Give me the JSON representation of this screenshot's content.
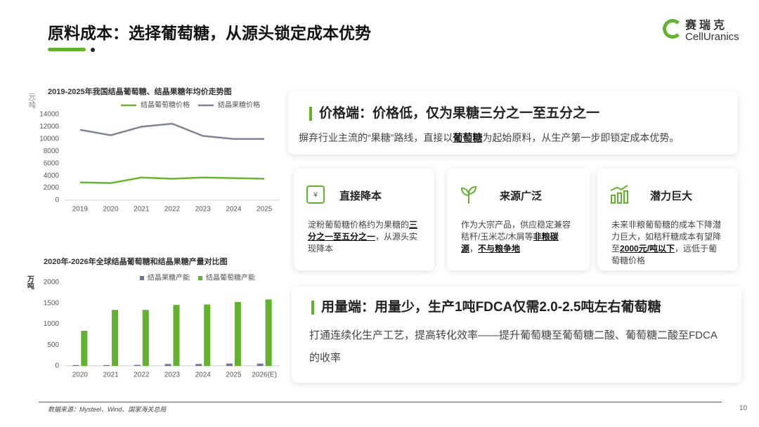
{
  "header": {
    "title": "原料成本：选择葡萄糖，从源头锁定成本优势",
    "logo_cn": "赛瑞克",
    "logo_en": "CellUranics"
  },
  "chart_data": [
    {
      "type": "line",
      "title": "2019-2025年我国结晶葡萄糖、结晶果糖年均价走势图",
      "y_label": "元/吨",
      "categories": [
        "2019",
        "2020",
        "2021",
        "2022",
        "2023",
        "2024",
        "2025"
      ],
      "series": [
        {
          "name": "结晶葡萄糖价格",
          "color": "#6ab42e",
          "values": [
            2900,
            2800,
            3700,
            3500,
            3700,
            3600,
            3500
          ]
        },
        {
          "name": "结晶果糖价格",
          "color": "#7f8393",
          "values": [
            11500,
            10600,
            12000,
            12500,
            10500,
            10000,
            10000
          ]
        }
      ],
      "ylim": [
        0,
        14000
      ],
      "yticks": [
        0,
        2000,
        4000,
        6000,
        8000,
        10000,
        12000,
        14000
      ],
      "grid": false
    },
    {
      "type": "bar",
      "title": "2020年-2026年全球结晶葡萄糖和结晶果糖产量对比图",
      "y_label": "万吨",
      "categories": [
        "2020",
        "2021",
        "2022",
        "2023",
        "2024",
        "2025",
        "2026(E)"
      ],
      "series": [
        {
          "name": "结晶果糖产能",
          "color": "#6d7390",
          "values": [
            20,
            20,
            25,
            45,
            45,
            55,
            55
          ]
        },
        {
          "name": "结晶葡萄糖产能",
          "color": "#62b22f",
          "values": [
            840,
            1340,
            1340,
            1460,
            1470,
            1530,
            1590
          ]
        }
      ],
      "ylim": [
        0,
        2000
      ],
      "yticks": [
        0,
        500,
        1000,
        1500,
        2000
      ],
      "grid": false
    }
  ],
  "price_box": {
    "heading": "价格端：价格低，仅为果糖三分之一至五分之一",
    "text": [
      {
        "text": "摒弃行业主流的“果糖”路线，直接以",
        "bold": false
      },
      {
        "text": "葡萄糖",
        "bold": true
      },
      {
        "text": "为起始原料，从生产第一步即锁定成本优势。",
        "bold": false
      }
    ]
  },
  "cards": [
    {
      "icon": "¥",
      "title": "直接降本",
      "text": [
        {
          "text": "淀粉葡萄糖价格约为果糖的",
          "bold": false
        },
        {
          "text": "三分之一至五分之一",
          "bold": true
        },
        {
          "text": "，从源头实现降本",
          "bold": false
        }
      ]
    },
    {
      "title": "来源广泛",
      "text": [
        {
          "text": "作为大宗产品，供应稳定兼容秸秆/玉米芯/木屑等",
          "bold": false
        },
        {
          "text": "非粮碳源",
          "bold": true
        },
        {
          "text": "，",
          "bold": false
        },
        {
          "text": "不与粮争地",
          "bold": true
        }
      ]
    },
    {
      "title": "潜力巨大",
      "text": [
        {
          "text": "未来非粮葡萄糖的成本下降潜力巨大，如秸秆糖成本有望降至",
          "bold": false
        },
        {
          "text": "2000元/吨以下",
          "bold": true
        },
        {
          "text": "，远低于葡萄糖价格",
          "bold": false
        }
      ]
    }
  ],
  "usage_box": {
    "heading": "用量端：用量少，生产1吨FDCA仅需2.0-2.5吨左右葡萄糖",
    "text": "打通连续化生产工艺，提高转化效率——提升葡萄糖至葡萄糖二酸、葡萄糖二酸至FDCA的收率"
  },
  "footer": {
    "source": "数据来源：Mysteel、Wind、国家海关总局",
    "page": "10"
  }
}
